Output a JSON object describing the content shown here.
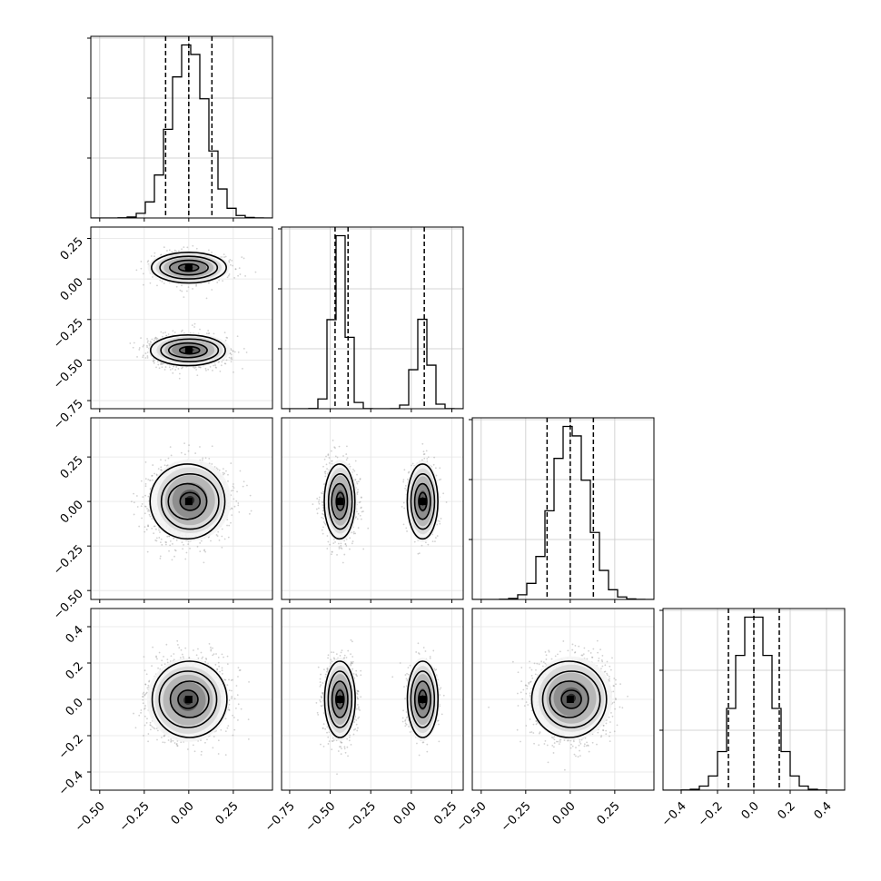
{
  "chart_data": {
    "type": "corner",
    "grid": true,
    "n_params": 4,
    "parameters": [
      {
        "range": [
          -0.55,
          0.47
        ],
        "ticks": [
          -0.5,
          -0.25,
          0.0,
          0.25
        ],
        "tick_labels": [
          "−0.50",
          "−0.25",
          "0.00",
          "0.25"
        ],
        "quantiles": [
          -0.13,
          0.0,
          0.13
        ],
        "modes": [
          {
            "mu": 0.0,
            "sd": 0.1,
            "w": 1.0
          }
        ]
      },
      {
        "range": [
          -0.8,
          0.32
        ],
        "ticks": [
          -0.75,
          -0.5,
          -0.25,
          0.0,
          0.25
        ],
        "tick_labels": [
          "−0.75",
          "−0.50",
          "−0.25",
          "0.00",
          "0.25"
        ],
        "quantiles": [
          -0.47,
          -0.39,
          0.08
        ],
        "modes": [
          {
            "mu": -0.44,
            "sd": 0.045,
            "w": 0.66
          },
          {
            "mu": 0.07,
            "sd": 0.045,
            "w": 0.34
          }
        ]
      },
      {
        "range": [
          -0.55,
          0.47
        ],
        "ticks": [
          -0.5,
          -0.25,
          0.0,
          0.25
        ],
        "tick_labels": [
          "−0.50",
          "−0.25",
          "0.00",
          "0.25"
        ],
        "quantiles": [
          -0.13,
          0.0,
          0.13
        ],
        "modes": [
          {
            "mu": 0.0,
            "sd": 0.1,
            "w": 1.0
          }
        ]
      },
      {
        "range": [
          -0.5,
          0.5
        ],
        "ticks": [
          -0.4,
          -0.2,
          0.0,
          0.2,
          0.4
        ],
        "tick_labels": [
          "−0.4",
          "−0.2",
          "0.0",
          "0.2",
          "0.4"
        ],
        "quantiles": [
          -0.14,
          0.0,
          0.14
        ],
        "modes": [
          {
            "mu": 0.0,
            "sd": 0.1,
            "w": 1.0
          }
        ]
      }
    ],
    "histogram_bins": 20,
    "contour_color": "#000000",
    "hist_color": "#000000",
    "scatter_color": "#9a9a9a"
  }
}
